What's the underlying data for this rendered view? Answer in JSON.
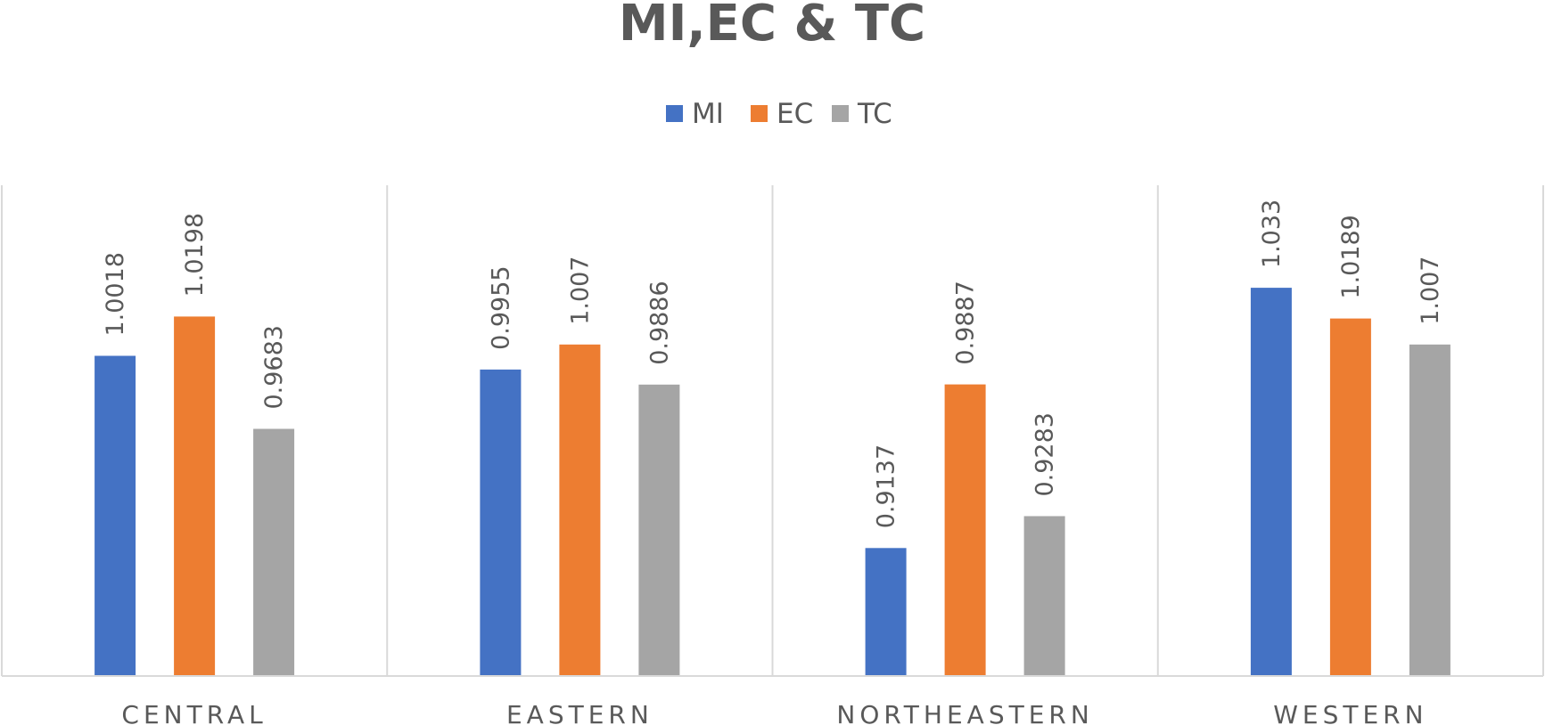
{
  "chart_data": {
    "type": "bar",
    "title": "MI,EC & TC",
    "categories": [
      "CENTRAL",
      "EASTERN",
      "NORTHEASTERN",
      "WESTERN"
    ],
    "series": [
      {
        "name": "MI",
        "color": "#4472C4",
        "values": [
          1.0018,
          0.9955,
          0.9137,
          1.033
        ],
        "labels": [
          "1.0018",
          "0.9955",
          "0.9137",
          "1.033"
        ]
      },
      {
        "name": "EC",
        "color": "#ED7D31",
        "values": [
          1.0198,
          1.007,
          0.9887,
          1.0189
        ],
        "labels": [
          "1.0198",
          "1.007",
          "0.9887",
          "1.0189"
        ]
      },
      {
        "name": "TC",
        "color": "#A5A5A5",
        "values": [
          0.9683,
          0.9886,
          0.9283,
          1.007
        ],
        "labels": [
          "0.9683",
          "0.9886",
          "0.9283",
          "1.007"
        ]
      }
    ],
    "ylim": [
      0.855,
      1.08
    ],
    "legend_position": "top-center",
    "gridlines": "vertical category separators",
    "data_labels": "rotated, above bars"
  }
}
